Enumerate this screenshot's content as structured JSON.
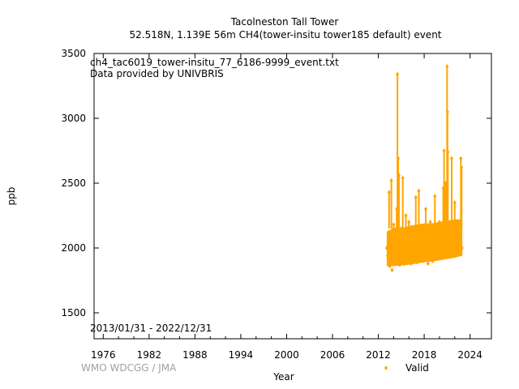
{
  "title_line1": "Tacolneston Tall Tower",
  "title_line2": "52.518N, 1.139E 56m     CH4(tower-insitu tower185 default) event",
  "file_label": "ch4_tac6019_tower-insitu_77_6186-9999_event.txt",
  "provider_label": "Data provided by UNIVBRIS",
  "date_range": "2013/01/31 - 2022/12/31",
  "credit": "WMO WDCGG / JMA",
  "chart_data": {
    "type": "scatter",
    "xlabel": "Year",
    "ylabel": "ppb",
    "xlim": [
      1974.8,
      2026.8
    ],
    "ylim": [
      1300,
      3500
    ],
    "x_ticks": [
      1976,
      1982,
      1988,
      1994,
      2000,
      2006,
      2012,
      2018,
      2024
    ],
    "y_ticks": [
      1500,
      2000,
      2500,
      3000,
      3500
    ],
    "grid": false,
    "legend_position": "bottom-right",
    "series": [
      {
        "name": "Valid",
        "color": "#ffa500",
        "marker": "diamond",
        "points": [
          {
            "x": 2013.1,
            "y": 2000
          },
          {
            "x": 2013.2,
            "y": 1940
          },
          {
            "x": 2013.3,
            "y": 2120
          },
          {
            "x": 2013.4,
            "y": 2430
          },
          {
            "x": 2013.5,
            "y": 1860
          },
          {
            "x": 2013.6,
            "y": 2050
          },
          {
            "x": 2013.7,
            "y": 2520
          },
          {
            "x": 2013.8,
            "y": 1830
          },
          {
            "x": 2014.0,
            "y": 2180
          },
          {
            "x": 2014.2,
            "y": 1900
          },
          {
            "x": 2014.4,
            "y": 2300
          },
          {
            "x": 2014.5,
            "y": 3340
          },
          {
            "x": 2014.6,
            "y": 2690
          },
          {
            "x": 2014.7,
            "y": 2560
          },
          {
            "x": 2014.8,
            "y": 1870
          },
          {
            "x": 2015.0,
            "y": 2150
          },
          {
            "x": 2015.2,
            "y": 2540
          },
          {
            "x": 2015.4,
            "y": 1880
          },
          {
            "x": 2015.6,
            "y": 2250
          },
          {
            "x": 2015.8,
            "y": 1960
          },
          {
            "x": 2016.0,
            "y": 2200
          },
          {
            "x": 2016.3,
            "y": 1880
          },
          {
            "x": 2016.6,
            "y": 2100
          },
          {
            "x": 2016.9,
            "y": 2390
          },
          {
            "x": 2017.1,
            "y": 1890
          },
          {
            "x": 2017.3,
            "y": 2440
          },
          {
            "x": 2017.6,
            "y": 2050
          },
          {
            "x": 2017.9,
            "y": 1900
          },
          {
            "x": 2018.2,
            "y": 2300
          },
          {
            "x": 2018.5,
            "y": 1880
          },
          {
            "x": 2018.8,
            "y": 2200
          },
          {
            "x": 2019.1,
            "y": 1900
          },
          {
            "x": 2019.4,
            "y": 2400
          },
          {
            "x": 2019.7,
            "y": 2000
          },
          {
            "x": 2020.0,
            "y": 2200
          },
          {
            "x": 2020.2,
            "y": 1930
          },
          {
            "x": 2020.5,
            "y": 2460
          },
          {
            "x": 2020.6,
            "y": 2750
          },
          {
            "x": 2020.8,
            "y": 2500
          },
          {
            "x": 2021.0,
            "y": 3400
          },
          {
            "x": 2021.05,
            "y": 3050
          },
          {
            "x": 2021.1,
            "y": 2740
          },
          {
            "x": 2021.3,
            "y": 2000
          },
          {
            "x": 2021.6,
            "y": 2690
          },
          {
            "x": 2021.8,
            "y": 1950
          },
          {
            "x": 2022.0,
            "y": 2350
          },
          {
            "x": 2022.3,
            "y": 2000
          },
          {
            "x": 2022.6,
            "y": 2200
          },
          {
            "x": 2022.8,
            "y": 2690
          },
          {
            "x": 2022.9,
            "y": 2620
          },
          {
            "x": 2022.95,
            "y": 2000
          }
        ],
        "band": {
          "x_start": 2013.08,
          "x_end": 2022.99,
          "lower": [
            [
              2013.1,
              1860
            ],
            [
              2014.0,
              1860
            ],
            [
              2015.0,
              1865
            ],
            [
              2016.0,
              1870
            ],
            [
              2017.0,
              1880
            ],
            [
              2018.0,
              1890
            ],
            [
              2019.0,
              1895
            ],
            [
              2020.0,
              1905
            ],
            [
              2021.0,
              1915
            ],
            [
              2022.0,
              1925
            ],
            [
              2022.99,
              1940
            ]
          ],
          "upper": [
            [
              2013.1,
              2120
            ],
            [
              2014.0,
              2160
            ],
            [
              2015.0,
              2150
            ],
            [
              2016.0,
              2170
            ],
            [
              2017.0,
              2180
            ],
            [
              2018.0,
              2190
            ],
            [
              2019.0,
              2190
            ],
            [
              2020.0,
              2200
            ],
            [
              2021.0,
              2210
            ],
            [
              2022.0,
              2220
            ],
            [
              2022.99,
              2220
            ]
          ]
        }
      }
    ]
  }
}
